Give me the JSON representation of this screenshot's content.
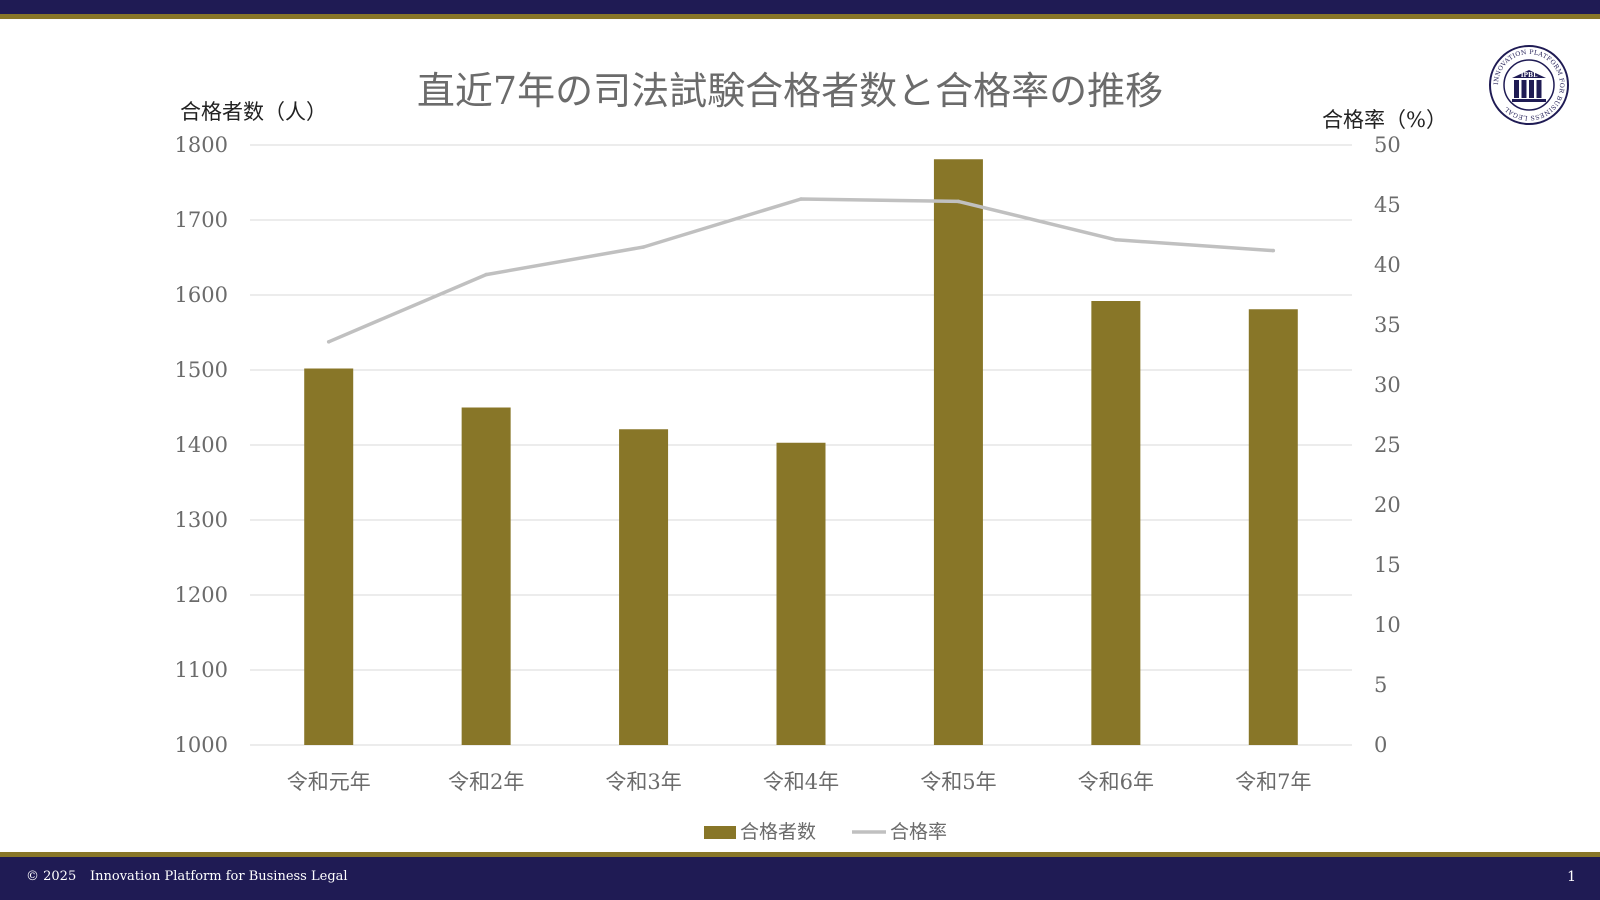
{
  "footer": {
    "copyright": "© 2025",
    "organization": "Innovation Platform for Business Legal",
    "page_number": "1"
  },
  "logo": {
    "ring_text": "INNOVATION PLATFORM FOR BUSINESS LEGAL",
    "emblem_text": "IPBL",
    "icon": "columns-emblem-icon"
  },
  "colors": {
    "navy": "#1f1b54",
    "gold": "#887628",
    "bar": "#887628",
    "line": "#c0c0c0",
    "grid": "#d9d9d9",
    "tick_text": "#6b6b6b"
  },
  "chart_data": {
    "type": "bar",
    "title": "直近7年の司法試験合格者数と合格率の推移",
    "categories": [
      "令和元年",
      "令和2年",
      "令和3年",
      "令和4年",
      "令和5年",
      "令和6年",
      "令和7年"
    ],
    "series": [
      {
        "name": "合格者数",
        "type": "bar",
        "axis": "left",
        "values": [
          1502,
          1450,
          1421,
          1403,
          1781,
          1592,
          1581
        ]
      },
      {
        "name": "合格率",
        "type": "line",
        "axis": "right",
        "values": [
          33.6,
          39.2,
          41.5,
          45.5,
          45.3,
          42.1,
          41.2
        ]
      }
    ],
    "ylabel": "合格者数（人）",
    "ylabel_right": "合格率（%）",
    "ylim": [
      1000,
      1800
    ],
    "ylim_right": [
      0,
      50
    ],
    "yticks": [
      "1000",
      "1100",
      "1200",
      "1300",
      "1400",
      "1500",
      "1600",
      "1700",
      "1800"
    ],
    "yticks_right": [
      "0",
      "5",
      "10",
      "15",
      "20",
      "25",
      "30",
      "35",
      "40",
      "45",
      "50"
    ],
    "grid": true,
    "legend_position": "bottom"
  }
}
